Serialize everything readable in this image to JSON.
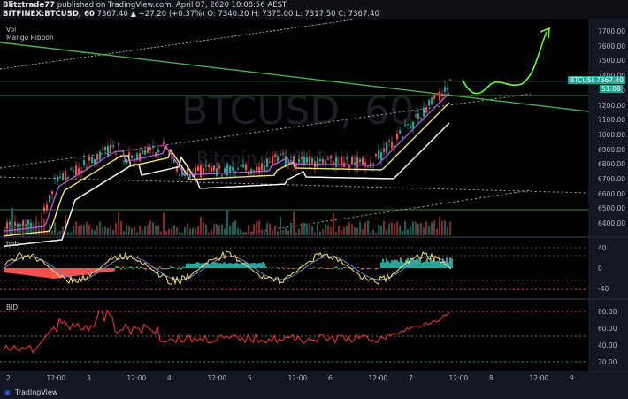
{
  "header": {
    "user": "Blitztrade77",
    "published": "published on TradingView.com, April 07, 2020 10:08:56 AEST",
    "symbol": "BITFINEX:BTCUSD, 60",
    "ohlc": "7367.40 ▲ +27.20 (+0.37%) O: 7340.20 H: 7375.00 L: 7317.50 C: 7367.40"
  },
  "main_pane": {
    "legend_vol": "Vol",
    "legend_ribbon": "Mango Ribbon",
    "watermark_symbol": "BTCUSD, 60",
    "watermark_name": "Bitcoin / U.S. Dollar",
    "price_ticks": [
      "7700.00",
      "7600.00",
      "7500.00",
      "7400.00",
      "7300.00",
      "7200.00",
      "7100.00",
      "7000.00",
      "6900.00",
      "6800.00",
      "6700.00",
      "6600.00",
      "6500.00",
      "6400.00"
    ],
    "last_price_tag": "BTCUSD",
    "last_price": "7367.40",
    "countdown": "51:08",
    "colors": {
      "up": "#26a69a",
      "down": "#ef5350",
      "trend": "#4caf50",
      "projection": "#6bff3a"
    }
  },
  "osc_pane": {
    "label": "bbb",
    "ticks": [
      "40",
      "0",
      "-40"
    ]
  },
  "bid_pane": {
    "label": "BID",
    "ticks": [
      "80.00",
      "60.00",
      "40.00",
      "20.00"
    ]
  },
  "time_axis": [
    "2",
    "12:00",
    "3",
    "12:00",
    "4",
    "12:00",
    "5",
    "12:00",
    "6",
    "12:00",
    "7",
    "12:00",
    "8",
    "12:00",
    "9"
  ],
  "footer": {
    "brand": "TradingView"
  }
}
